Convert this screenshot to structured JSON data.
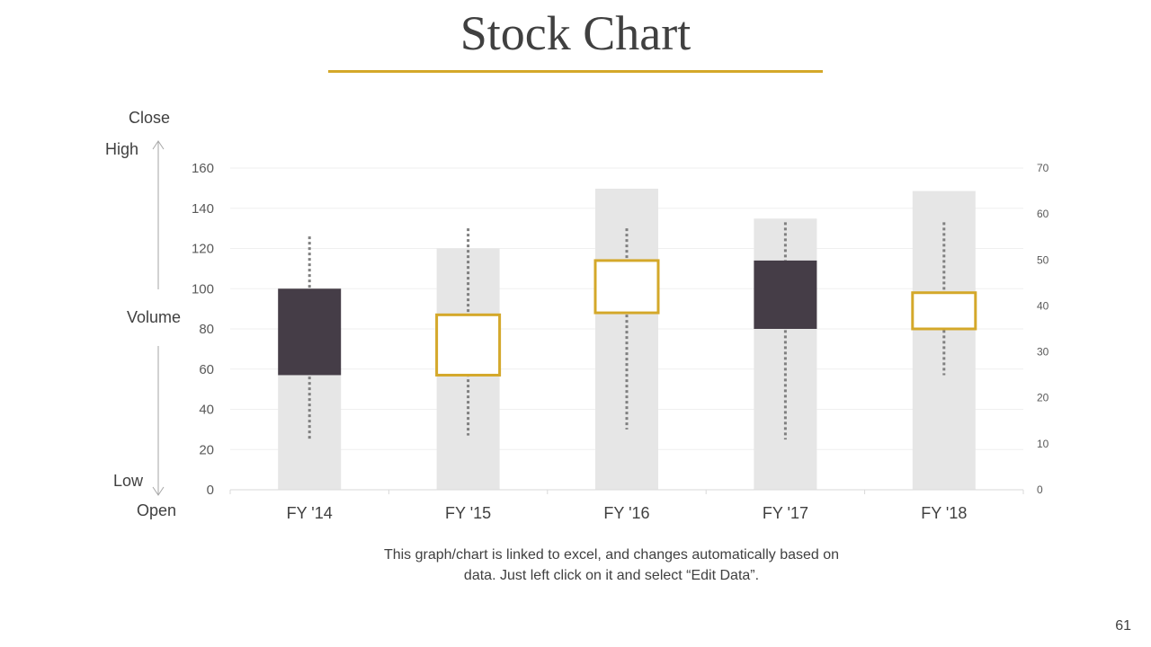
{
  "slide": {
    "title": "Stock Chart",
    "caption_line1": "This graph/chart is linked to excel, and changes automatically based on",
    "caption_line2": "data. Just left click on it and select “Edit Data”.",
    "page_number": "61",
    "legend_labels": {
      "close": "Close",
      "high": "High",
      "volume": "Volume",
      "low": "Low",
      "open": "Open"
    },
    "colors": {
      "accent": "#d4a82a",
      "dark_candle": "#453d47",
      "volume_bar": "#e6e6e6",
      "wick": "#7f7f7f",
      "text": "#404040"
    }
  },
  "chart_data": {
    "type": "candlestick",
    "categories": [
      "FY '14",
      "FY '15",
      "FY '16",
      "FY '17",
      "FY '18"
    ],
    "left_axis": {
      "min": 0,
      "max": 160,
      "ticks": [
        0,
        20,
        40,
        60,
        80,
        100,
        120,
        140,
        160
      ]
    },
    "right_axis": {
      "min": 0,
      "max": 70,
      "ticks": [
        0,
        10,
        20,
        30,
        40,
        50,
        60,
        70
      ]
    },
    "volume": [
      25,
      52.5,
      65.5,
      59,
      65
    ],
    "open": [
      100,
      57,
      88,
      114,
      80
    ],
    "high": [
      126,
      130,
      130,
      133,
      133
    ],
    "low": [
      25,
      27,
      30,
      25,
      57
    ],
    "close": [
      57,
      87,
      114,
      80,
      98
    ],
    "grid": true
  }
}
